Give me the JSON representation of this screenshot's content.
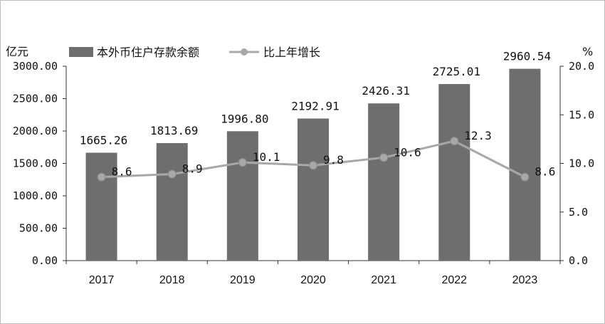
{
  "chart_data": {
    "type": "bar",
    "categories": [
      "2017",
      "2018",
      "2019",
      "2020",
      "2021",
      "2022",
      "2023"
    ],
    "series": [
      {
        "name": "本外币住户存款余额",
        "type": "bar",
        "axis": "left",
        "values": [
          1665.26,
          1813.69,
          1996.8,
          2192.91,
          2426.31,
          2725.01,
          2960.54
        ],
        "labels": [
          "1665.26",
          "1813.69",
          "1996.80",
          "2192.91",
          "2426.31",
          "2725.01",
          "2960.54"
        ],
        "color": "#6e6e6e"
      },
      {
        "name": "比上年增长",
        "type": "line",
        "axis": "right",
        "values": [
          8.6,
          8.9,
          10.1,
          9.8,
          10.6,
          12.3,
          8.6
        ],
        "labels": [
          "8.6",
          "8.9",
          "10.1",
          "9.8",
          "10.6",
          "12.3",
          "8.6"
        ],
        "color": "#a8a8a8"
      }
    ],
    "left_axis": {
      "unit": "亿元",
      "ylim": [
        0,
        3000
      ],
      "ticks": [
        "0.00",
        "500.00",
        "1000.00",
        "1500.00",
        "2000.00",
        "2500.00",
        "3000.00"
      ]
    },
    "right_axis": {
      "unit": "%",
      "ylim": [
        0,
        20
      ],
      "ticks": [
        "0.0",
        "5.0",
        "10.0",
        "15.0",
        "20.0"
      ]
    },
    "grid": false,
    "legend": "top-left"
  }
}
